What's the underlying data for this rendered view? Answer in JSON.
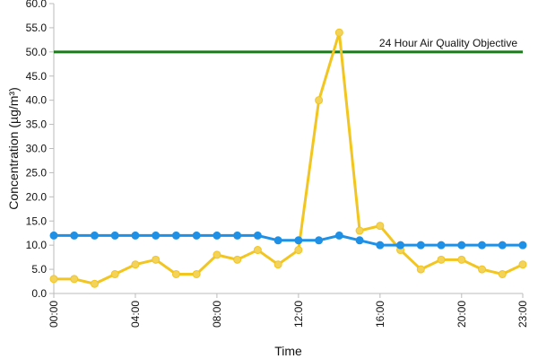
{
  "chart_data": {
    "type": "line",
    "xlabel": "Time",
    "ylabel": "Concentration (µg/m³)",
    "ylim": [
      0,
      60
    ],
    "y_ticks": [
      "0.0",
      "5.0",
      "10.0",
      "15.0",
      "20.0",
      "25.0",
      "30.0",
      "35.0",
      "40.0",
      "45.0",
      "50.0",
      "55.0",
      "60.0"
    ],
    "x_ticks": [
      "00:00",
      "04:00",
      "08:00",
      "12:00",
      "16:00",
      "20:00",
      "23:00"
    ],
    "x_tick_hours": [
      0,
      4,
      8,
      12,
      16,
      20,
      23
    ],
    "hours": [
      0,
      1,
      2,
      3,
      4,
      5,
      6,
      7,
      8,
      9,
      10,
      11,
      12,
      13,
      14,
      15,
      16,
      17,
      18,
      19,
      20,
      21,
      22,
      23
    ],
    "series": [
      {
        "color": "#F2C51F",
        "marker_color": "#F3D35A",
        "values": [
          3,
          3,
          2,
          4,
          6,
          7,
          4,
          4,
          8,
          7,
          9,
          6,
          9,
          40,
          54,
          13,
          14,
          9,
          5,
          7,
          7,
          5,
          4,
          6
        ]
      },
      {
        "color": "#1E90E6",
        "marker_color": "#1E90E6",
        "values": [
          12,
          12,
          12,
          12,
          12,
          12,
          12,
          12,
          12,
          12,
          12,
          11,
          11,
          11,
          12,
          11,
          10,
          10,
          10,
          10,
          10,
          10,
          10,
          10
        ]
      }
    ],
    "reference_line": {
      "value": 50,
      "label": "24 Hour Air Quality Objective",
      "color": "#1B7A1B"
    },
    "grid": false
  }
}
